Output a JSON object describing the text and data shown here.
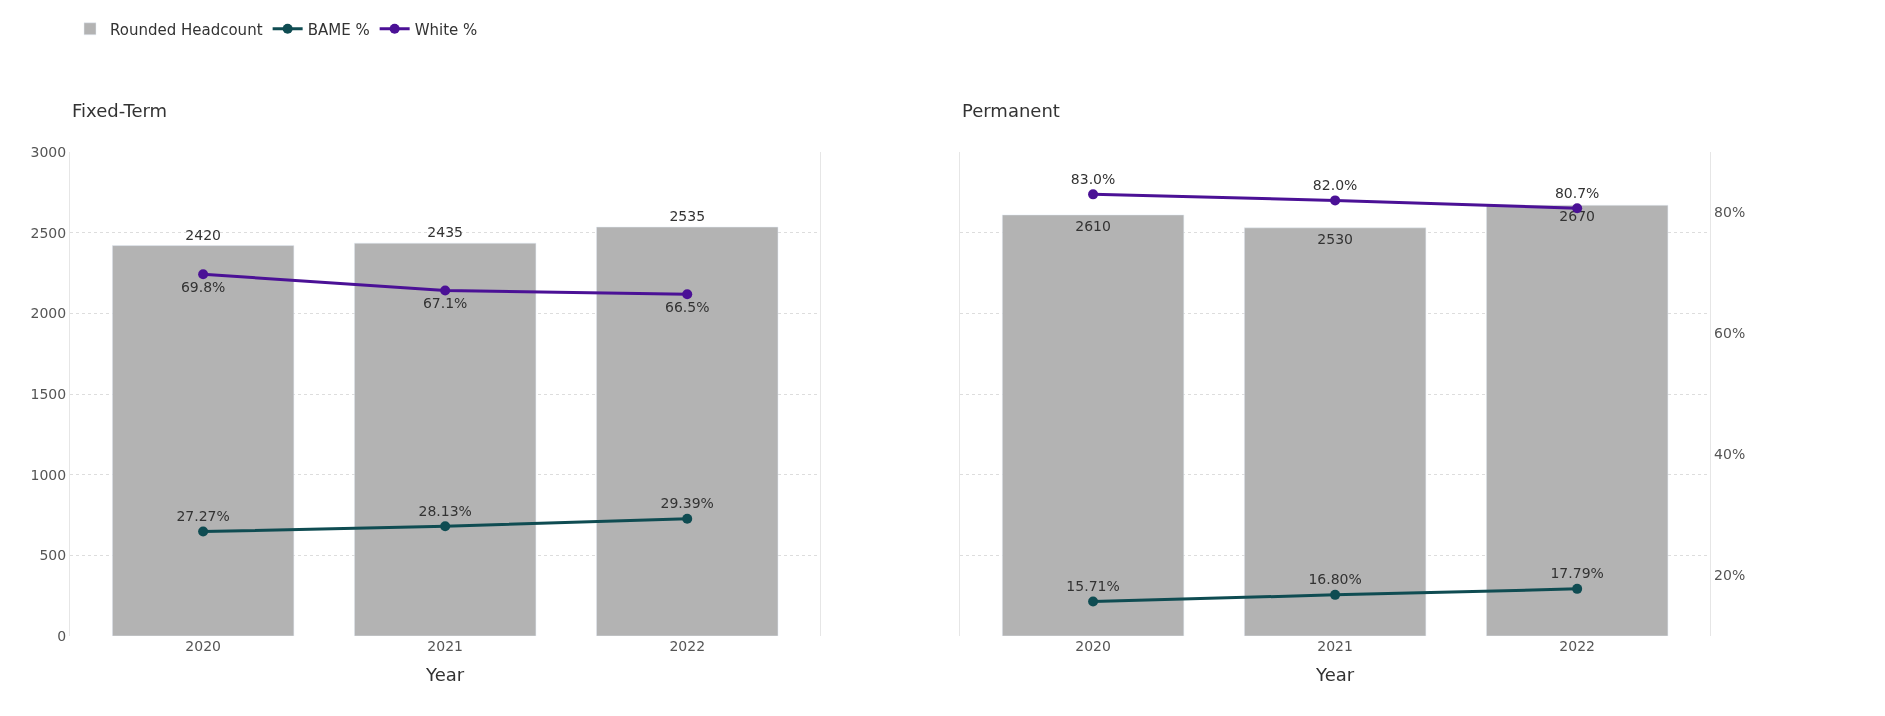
{
  "chart_data": [
    {
      "type": "bar",
      "title": "Fixed-Term",
      "xlabel": "Year",
      "categories": [
        "2020",
        "2021",
        "2022"
      ],
      "series": [
        {
          "name": "Rounded Headcount",
          "color": "#b3b3b3",
          "values": [
            2420,
            2435,
            2535
          ],
          "value_labels": [
            "2420",
            "2435",
            "2535"
          ]
        },
        {
          "name": "BAME %",
          "type": "line",
          "axis": "y2",
          "color": "#0f4c52",
          "values": [
            27.27,
            28.13,
            29.39
          ],
          "value_labels": [
            "27.27%",
            "28.13%",
            "29.39%"
          ]
        },
        {
          "name": "White %",
          "type": "line",
          "axis": "y2",
          "color": "#4b1196",
          "values": [
            69.8,
            67.1,
            66.5
          ],
          "value_labels": [
            "69.8%",
            "67.1%",
            "66.5%"
          ]
        }
      ],
      "ylim": [
        0,
        3000
      ],
      "yticks": [
        0,
        500,
        1000,
        1500,
        2000,
        2500,
        3000
      ],
      "y2lim": [
        10,
        90
      ],
      "tick_labels": "xy",
      "grid": "y",
      "legend": "top left",
      "marker": "circle"
    },
    {
      "type": "bar",
      "title": "Permanent",
      "xlabel": "Year",
      "categories": [
        "2020",
        "2021",
        "2022"
      ],
      "series": [
        {
          "color": "#b3b3b3",
          "values": [
            2610,
            2530,
            2670
          ],
          "value_labels": [
            "2610",
            "2530",
            "2670"
          ]
        },
        {
          "type": "line",
          "axis": "y2",
          "color": "#0f4c52",
          "values": [
            15.71,
            16.8,
            17.79
          ],
          "value_labels": [
            "15.71%",
            "16.80%",
            "17.79%"
          ]
        },
        {
          "type": "line",
          "axis": "y2",
          "color": "#4b1196",
          "values": [
            83.0,
            82.0,
            80.7
          ],
          "value_labels": [
            "83.0%",
            "82.0%",
            "80.7%"
          ]
        }
      ],
      "ylim": [
        0,
        3000
      ],
      "y2lim": [
        10,
        90
      ],
      "y2ticks": [
        {
          "value": 20,
          "label": "20%"
        },
        {
          "value": 40,
          "label": "40%"
        },
        {
          "value": 60,
          "label": "60%"
        },
        {
          "value": 80,
          "label": "80%"
        }
      ],
      "tick_labels": "xy2",
      "grid": "y",
      "legend": false,
      "marker": "circle"
    }
  ]
}
